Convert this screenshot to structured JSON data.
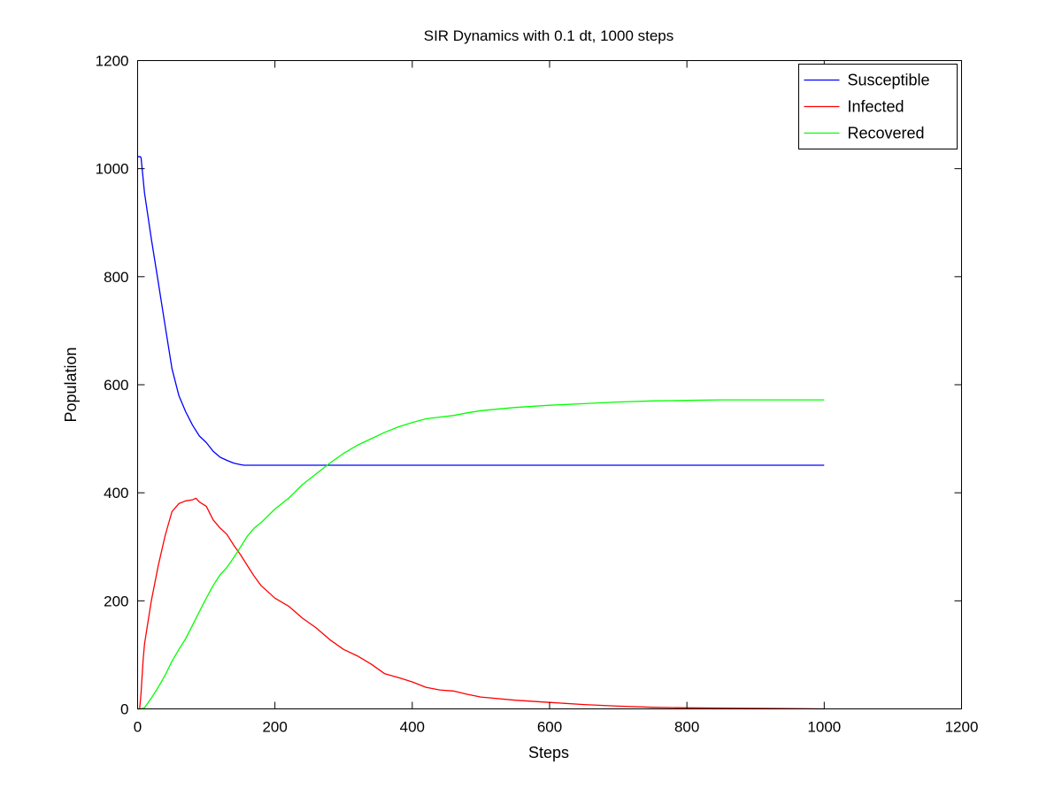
{
  "chart_data": {
    "type": "line",
    "title": "SIR Dynamics with 0.1 dt, 1000 steps",
    "xlabel": "Steps",
    "ylabel": "Population",
    "xlim": [
      0,
      1200
    ],
    "ylim": [
      0,
      1200
    ],
    "xticks": [
      0,
      200,
      400,
      600,
      800,
      1000,
      1200
    ],
    "yticks": [
      0,
      200,
      400,
      600,
      800,
      1000,
      1200
    ],
    "grid": false,
    "legend_position": "top-right",
    "series": [
      {
        "name": "Susceptible",
        "color": "#0000ff",
        "x": [
          0,
          4,
          5,
          10,
          20,
          30,
          40,
          50,
          60,
          70,
          80,
          90,
          100,
          110,
          120,
          130,
          140,
          150,
          155,
          170,
          200,
          300,
          400,
          500,
          600,
          700,
          800,
          900,
          1000
        ],
        "y": [
          1022,
          1022,
          1020,
          955,
          870,
          790,
          710,
          630,
          580,
          550,
          525,
          505,
          493,
          477,
          466,
          460,
          455,
          452,
          451,
          451,
          451,
          451,
          451,
          451,
          451,
          451,
          451,
          451,
          451
        ]
      },
      {
        "name": "Infected",
        "color": "#ff0000",
        "x": [
          0,
          3,
          5,
          8,
          10,
          15,
          20,
          30,
          40,
          50,
          60,
          70,
          80,
          85,
          90,
          100,
          110,
          120,
          130,
          140,
          150,
          160,
          170,
          180,
          200,
          220,
          240,
          260,
          280,
          300,
          320,
          340,
          360,
          380,
          400,
          420,
          440,
          460,
          480,
          500,
          550,
          600,
          650,
          700,
          750,
          800,
          900,
          1000
        ],
        "y": [
          0,
          0,
          30,
          90,
          120,
          160,
          200,
          265,
          320,
          365,
          380,
          385,
          387,
          390,
          383,
          375,
          350,
          335,
          323,
          303,
          285,
          265,
          245,
          228,
          205,
          190,
          168,
          150,
          128,
          110,
          98,
          83,
          65,
          58,
          50,
          40,
          35,
          33,
          27,
          22,
          16,
          12,
          8,
          5,
          3,
          2,
          1,
          0
        ]
      },
      {
        "name": "Recovered",
        "color": "#00ff00",
        "x": [
          0,
          5,
          10,
          20,
          30,
          40,
          50,
          60,
          70,
          80,
          90,
          100,
          110,
          120,
          130,
          140,
          150,
          160,
          170,
          180,
          200,
          220,
          240,
          260,
          280,
          300,
          320,
          340,
          360,
          380,
          400,
          420,
          440,
          460,
          480,
          500,
          550,
          600,
          650,
          700,
          750,
          800,
          850,
          900,
          950,
          1000
        ],
        "y": [
          0,
          0,
          2,
          20,
          40,
          62,
          88,
          110,
          130,
          155,
          180,
          205,
          228,
          248,
          262,
          280,
          300,
          320,
          335,
          345,
          370,
          390,
          415,
          435,
          455,
          473,
          488,
          500,
          512,
          522,
          530,
          537,
          540,
          543,
          548,
          552,
          558,
          562,
          565,
          568,
          570,
          571,
          572,
          572,
          572,
          572
        ]
      }
    ]
  }
}
